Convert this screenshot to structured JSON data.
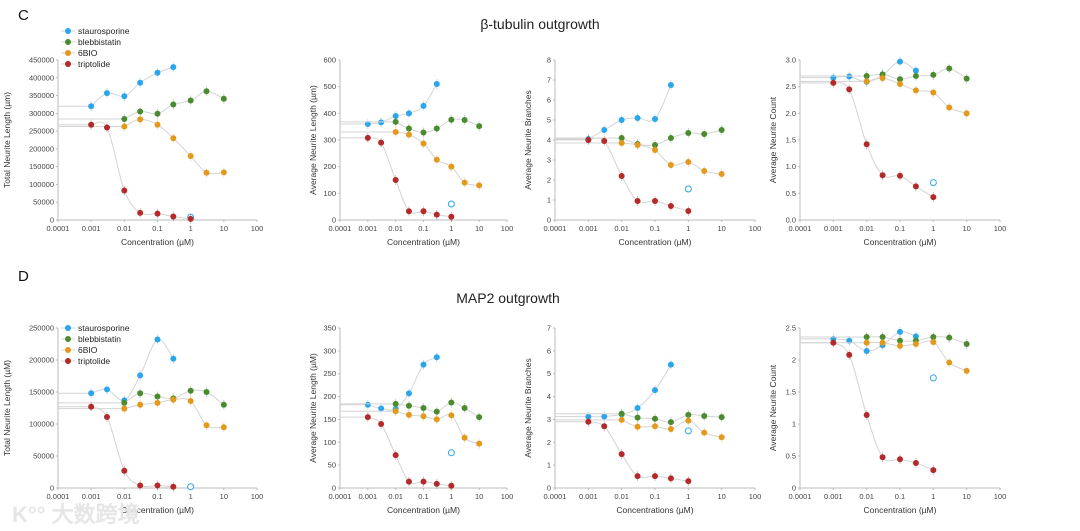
{
  "figure": {
    "rows": [
      {
        "letter": "C",
        "title": "β-tubulin outgrowth"
      },
      {
        "letter": "D",
        "title": "MAP2 outgrowth"
      }
    ],
    "watermark": "大数跨境",
    "colors": {
      "staurosporine": "#2ba6ea",
      "blebbistatin": "#4b8b2f",
      "6BIO": "#e39a1c",
      "triptolide": "#b32a2a",
      "fit": "#d4d4d4"
    },
    "legend": [
      "staurosporine",
      "blebbistatin",
      "6BIO",
      "triptolide"
    ]
  },
  "chart_data": [
    {
      "type": "scatter",
      "row": 0,
      "ylabel": "Total Neurite Length (µm)",
      "xlabel": "Concentration (µM)",
      "xscale": "log",
      "xlim": [
        0.0001,
        100
      ],
      "xticks": [
        "0.0001",
        "0.001",
        "0.01",
        "0.1",
        "1",
        "10",
        "100"
      ],
      "ylim": [
        0,
        450000
      ],
      "yticks": [
        "0",
        "50000",
        "100000",
        "150000",
        "200000",
        "250000",
        "300000",
        "350000",
        "400000",
        "450000"
      ],
      "legend": true,
      "series": [
        {
          "name": "staurosporine",
          "x": [
            0.001,
            0.003,
            0.01,
            0.03,
            0.1,
            0.3
          ],
          "y": [
            320000,
            357000,
            348000,
            386000,
            414000,
            430000
          ],
          "open": {
            "x": 1,
            "y": 8000
          }
        },
        {
          "name": "blebbistatin",
          "x": [
            0.01,
            0.03,
            0.1,
            0.3,
            1,
            3,
            10
          ],
          "y": [
            284000,
            305000,
            299000,
            325000,
            336000,
            362000,
            341000
          ]
        },
        {
          "name": "6BIO",
          "x": [
            0.01,
            0.03,
            0.1,
            0.3,
            1,
            3,
            10
          ],
          "y": [
            263000,
            283000,
            268000,
            230000,
            180000,
            133000,
            134000
          ]
        },
        {
          "name": "triptolide",
          "x": [
            0.001,
            0.003,
            0.01,
            0.03,
            0.1,
            0.3,
            1
          ],
          "y": [
            268000,
            260000,
            83000,
            20000,
            18000,
            10000,
            3000
          ]
        }
      ]
    },
    {
      "type": "scatter",
      "row": 0,
      "ylabel": "Average Neurite Length (µm)",
      "xlabel": "Concentration (µM)",
      "xscale": "log",
      "xlim": [
        0.0001,
        100
      ],
      "xticks": [
        "0.0001",
        "0.001",
        "0.01",
        "0.1",
        "1",
        "10",
        "100"
      ],
      "ylim": [
        0,
        600
      ],
      "yticks": [
        "0",
        "100",
        "200",
        "300",
        "400",
        "500",
        "600"
      ],
      "series": [
        {
          "name": "staurosporine",
          "x": [
            0.001,
            0.003,
            0.01,
            0.03,
            0.1,
            0.3
          ],
          "y": [
            360,
            366,
            390,
            400,
            428,
            510
          ],
          "open": {
            "x": 1,
            "y": 60
          }
        },
        {
          "name": "blebbistatin",
          "x": [
            0.01,
            0.03,
            0.1,
            0.3,
            1,
            3,
            10
          ],
          "y": [
            368,
            343,
            328,
            343,
            376,
            375,
            352
          ]
        },
        {
          "name": "6BIO",
          "x": [
            0.01,
            0.03,
            0.1,
            0.3,
            1,
            3,
            10
          ],
          "y": [
            330,
            320,
            287,
            226,
            200,
            140,
            130
          ]
        },
        {
          "name": "triptolide",
          "x": [
            0.001,
            0.003,
            0.01,
            0.03,
            0.1,
            0.3,
            1
          ],
          "y": [
            308,
            290,
            150,
            33,
            33,
            20,
            12
          ]
        }
      ]
    },
    {
      "type": "scatter",
      "row": 0,
      "ylabel": "Average Neurite Branches",
      "xlabel": "Concentration (µM)",
      "xscale": "log",
      "xlim": [
        0.0001,
        100
      ],
      "xticks": [
        "0.0001",
        "0.001",
        "0.01",
        "0.1",
        "1",
        "10",
        "100"
      ],
      "ylim": [
        0,
        8
      ],
      "yticks": [
        "0",
        "1",
        "2",
        "3",
        "4",
        "5",
        "6",
        "7",
        "8"
      ],
      "series": [
        {
          "name": "staurosporine",
          "x": [
            0.001,
            0.003,
            0.01,
            0.03,
            0.1,
            0.3
          ],
          "y": [
            4.05,
            4.5,
            5.0,
            5.1,
            5.05,
            6.75
          ],
          "open": {
            "x": 1,
            "y": 1.55
          }
        },
        {
          "name": "blebbistatin",
          "x": [
            0.01,
            0.03,
            0.1,
            0.3,
            1,
            3,
            10
          ],
          "y": [
            4.1,
            3.8,
            3.75,
            4.1,
            4.35,
            4.3,
            4.5
          ]
        },
        {
          "name": "6BIO",
          "x": [
            0.01,
            0.03,
            0.1,
            0.3,
            1,
            3,
            10
          ],
          "y": [
            3.85,
            3.75,
            3.5,
            2.75,
            2.9,
            2.45,
            2.3
          ]
        },
        {
          "name": "triptolide",
          "x": [
            0.001,
            0.003,
            0.01,
            0.03,
            0.1,
            0.3,
            1
          ],
          "y": [
            4.0,
            3.95,
            2.2,
            0.95,
            0.95,
            0.7,
            0.45
          ]
        }
      ]
    },
    {
      "type": "scatter",
      "row": 0,
      "ylabel": "Average Neurite Count",
      "xlabel": "Concentration (µM)",
      "xscale": "log",
      "xlim": [
        0.0001,
        100
      ],
      "xticks": [
        "0.0001",
        "0.001",
        "0.01",
        "0.1",
        "1",
        "10",
        "100"
      ],
      "ylim": [
        0,
        3
      ],
      "yticks": [
        "0.0",
        "0.5",
        "1.0",
        "1.5",
        "2.0",
        "2.5",
        "3.0"
      ],
      "series": [
        {
          "name": "staurosporine",
          "x": [
            0.001,
            0.003,
            0.01,
            0.03,
            0.1,
            0.3
          ],
          "y": [
            2.67,
            2.69,
            2.59,
            2.72,
            2.97,
            2.8
          ],
          "open": {
            "x": 1,
            "y": 0.7
          }
        },
        {
          "name": "blebbistatin",
          "x": [
            0.01,
            0.03,
            0.1,
            0.3,
            1,
            3,
            10
          ],
          "y": [
            2.7,
            2.73,
            2.64,
            2.7,
            2.72,
            2.84,
            2.65
          ]
        },
        {
          "name": "6BIO",
          "x": [
            0.01,
            0.03,
            0.1,
            0.3,
            1,
            3,
            10
          ],
          "y": [
            2.6,
            2.66,
            2.55,
            2.43,
            2.39,
            2.11,
            2.0
          ]
        },
        {
          "name": "triptolide",
          "x": [
            0.001,
            0.003,
            0.01,
            0.03,
            0.1,
            0.3,
            1
          ],
          "y": [
            2.57,
            2.45,
            1.42,
            0.84,
            0.83,
            0.63,
            0.43
          ]
        }
      ]
    },
    {
      "type": "scatter",
      "row": 1,
      "ylabel": "Total Neurite Length (µM)",
      "xlabel": "Concentration (µM)",
      "xscale": "log",
      "xlim": [
        0.0001,
        100
      ],
      "xticks": [
        "0.0001",
        "0.001",
        "0.01",
        "0.1",
        "1",
        "10",
        "100"
      ],
      "ylim": [
        0,
        250000
      ],
      "yticks": [
        "0",
        "50000",
        "100000",
        "150000",
        "200000",
        "250000"
      ],
      "legend": true,
      "series": [
        {
          "name": "staurosporine",
          "x": [
            0.001,
            0.003,
            0.01,
            0.03,
            0.1,
            0.3
          ],
          "y": [
            148000,
            154000,
            137000,
            176000,
            232000,
            202000
          ],
          "open": {
            "x": 1,
            "y": 2000
          }
        },
        {
          "name": "blebbistatin",
          "x": [
            0.01,
            0.03,
            0.1,
            0.3,
            1,
            3,
            10
          ],
          "y": [
            133000,
            148000,
            143000,
            140000,
            152000,
            150000,
            130000
          ]
        },
        {
          "name": "6BIO",
          "x": [
            0.01,
            0.03,
            0.1,
            0.3,
            1,
            3,
            10
          ],
          "y": [
            124000,
            130000,
            133000,
            138000,
            136000,
            98000,
            95000
          ]
        },
        {
          "name": "triptolide",
          "x": [
            0.001,
            0.003,
            0.01,
            0.03,
            0.1,
            0.3
          ],
          "y": [
            127000,
            111000,
            27000,
            4000,
            4000,
            2000
          ]
        }
      ]
    },
    {
      "type": "scatter",
      "row": 1,
      "ylabel": "Average Neurite Length (µM)",
      "xlabel": "Concentration (µM)",
      "xscale": "log",
      "xlim": [
        0.0001,
        100
      ],
      "xticks": [
        "0.0001",
        "0.001",
        "0.01",
        "0.1",
        "1",
        "10",
        "100"
      ],
      "ylim": [
        0,
        350
      ],
      "yticks": [
        "0",
        "50",
        "100",
        "150",
        "200",
        "250",
        "300",
        "350"
      ],
      "series": [
        {
          "name": "staurosporine",
          "x": [
            0.001,
            0.003,
            0.01,
            0.03,
            0.1,
            0.3
          ],
          "y": [
            182,
            174,
            173,
            207,
            270,
            286
          ],
          "open": {
            "x": 1,
            "y": 77
          }
        },
        {
          "name": "blebbistatin",
          "x": [
            0.01,
            0.03,
            0.1,
            0.3,
            1,
            3,
            10
          ],
          "y": [
            184,
            180,
            175,
            167,
            187,
            175,
            155
          ]
        },
        {
          "name": "6BIO",
          "x": [
            0.01,
            0.03,
            0.1,
            0.3,
            1,
            3,
            10
          ],
          "y": [
            168,
            160,
            157,
            150,
            159,
            110,
            97
          ]
        },
        {
          "name": "triptolide",
          "x": [
            0.001,
            0.003,
            0.01,
            0.03,
            0.1,
            0.3,
            1
          ],
          "y": [
            155,
            140,
            72,
            14,
            14,
            9,
            5
          ]
        }
      ]
    },
    {
      "type": "scatter",
      "row": 1,
      "ylabel": "Average Neurite Branches",
      "xlabel": "Concentrations (µM)",
      "xscale": "log",
      "xlim": [
        0.0001,
        100
      ],
      "xticks": [
        "0.0001",
        "0.001",
        "0.01",
        "0.1",
        "1",
        "10",
        "100"
      ],
      "ylim": [
        0,
        7
      ],
      "yticks": [
        "0",
        "1",
        "2",
        "3",
        "4",
        "5",
        "6",
        "7"
      ],
      "series": [
        {
          "name": "staurosporine",
          "x": [
            0.001,
            0.003,
            0.01,
            0.03,
            0.1,
            0.3
          ],
          "y": [
            3.12,
            3.13,
            3.22,
            3.5,
            4.28,
            5.4
          ],
          "open": {
            "x": 1,
            "y": 2.5
          }
        },
        {
          "name": "blebbistatin",
          "x": [
            0.01,
            0.03,
            0.1,
            0.3,
            1,
            3,
            10
          ],
          "y": [
            3.25,
            3.08,
            3.03,
            2.88,
            3.2,
            3.15,
            3.1
          ]
        },
        {
          "name": "6BIO",
          "x": [
            0.01,
            0.03,
            0.1,
            0.3,
            1,
            3,
            10
          ],
          "y": [
            2.98,
            2.68,
            2.7,
            2.58,
            2.95,
            2.42,
            2.22
          ]
        },
        {
          "name": "triptolide",
          "x": [
            0.001,
            0.003,
            0.01,
            0.03,
            0.1,
            0.3,
            1
          ],
          "y": [
            2.9,
            2.7,
            1.48,
            0.52,
            0.52,
            0.42,
            0.3
          ]
        }
      ]
    },
    {
      "type": "scatter",
      "row": 1,
      "ylabel": "Average Neurite Count",
      "xlabel": "Concentration (µM)",
      "xscale": "log",
      "xlim": [
        0.0001,
        100
      ],
      "xticks": [
        "0.0001",
        "0.001",
        "0.01",
        "0.1",
        "1",
        "10",
        "100"
      ],
      "ylim": [
        0,
        2.5
      ],
      "yticks": [
        "0",
        "0.5",
        "1",
        "1.5",
        "2",
        "2.5"
      ],
      "series": [
        {
          "name": "staurosporine",
          "x": [
            0.001,
            0.003,
            0.01,
            0.03,
            0.1,
            0.3
          ],
          "y": [
            2.33,
            2.3,
            2.14,
            2.23,
            2.44,
            2.37
          ],
          "open": {
            "x": 1,
            "y": 1.72
          }
        },
        {
          "name": "blebbistatin",
          "x": [
            0.01,
            0.03,
            0.1,
            0.3,
            1,
            3,
            10
          ],
          "y": [
            2.36,
            2.36,
            2.3,
            2.3,
            2.36,
            2.35,
            2.25
          ]
        },
        {
          "name": "6BIO",
          "x": [
            0.01,
            0.03,
            0.1,
            0.3,
            1,
            3,
            10
          ],
          "y": [
            2.27,
            2.27,
            2.22,
            2.25,
            2.28,
            1.96,
            1.83
          ]
        },
        {
          "name": "triptolide",
          "x": [
            0.001,
            0.003,
            0.01,
            0.03,
            0.1,
            0.3,
            1
          ],
          "y": [
            2.27,
            2.08,
            1.14,
            0.48,
            0.45,
            0.39,
            0.28
          ]
        }
      ]
    }
  ]
}
